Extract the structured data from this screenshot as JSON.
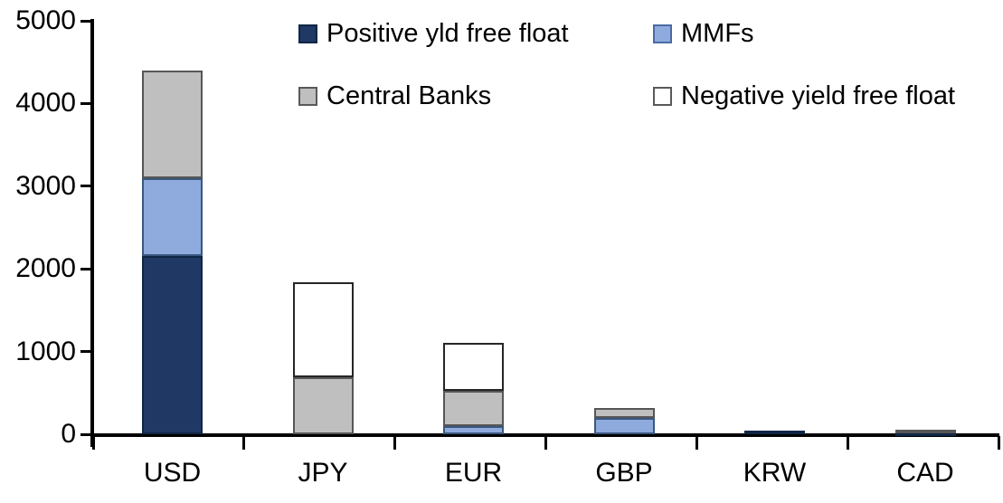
{
  "chart_data": {
    "type": "bar",
    "stacked": true,
    "title": "",
    "xlabel": "",
    "ylabel": "",
    "grid": false,
    "legend_position": "top",
    "axis_color": "#000000",
    "text_color": "#000000",
    "background_color": "#ffffff",
    "ylim": [
      0,
      5000
    ],
    "yticks": [
      0,
      1000,
      2000,
      3000,
      4000,
      5000
    ],
    "categories": [
      "USD",
      "JPY",
      "EUR",
      "GBP",
      "KRW",
      "CAD"
    ],
    "series": [
      {
        "name": "Positive yld free float",
        "color": "#1f3864",
        "values": [
          2150,
          0,
          0,
          0,
          40,
          20
        ]
      },
      {
        "name": "MMFs",
        "color": "#8faadc",
        "values": [
          950,
          0,
          100,
          200,
          0,
          0
        ]
      },
      {
        "name": "Central Banks",
        "color": "#bfbfbf",
        "values": [
          1300,
          690,
          430,
          120,
          0,
          40
        ]
      },
      {
        "name": "Negative yield free float",
        "color": "#ffffff",
        "values": [
          0,
          1150,
          570,
          0,
          0,
          0
        ]
      }
    ],
    "totals": {
      "USD": 4400,
      "JPY": 1840,
      "EUR": 1100,
      "GBP": 320,
      "KRW": 40,
      "CAD": 60
    }
  }
}
